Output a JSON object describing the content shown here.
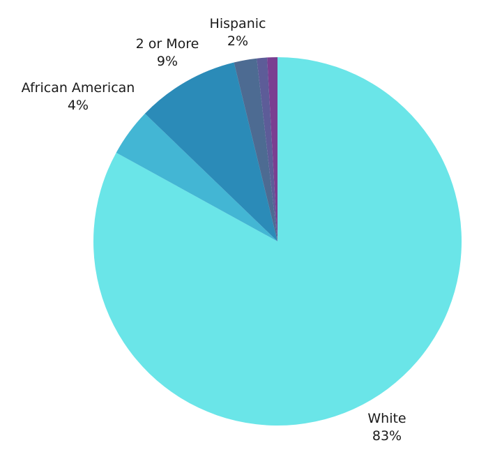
{
  "chart_data": {
    "type": "pie",
    "start_angle_deg": 0,
    "direction": "clockwise",
    "slices": [
      {
        "label": "White",
        "percent_label": "83%",
        "value": 83.0,
        "color": "#6ae5e8",
        "show_label": true
      },
      {
        "label": "African American",
        "percent_label": "4%",
        "value": 4.2,
        "color": "#43b6d4",
        "show_label": true
      },
      {
        "label": "2 or More",
        "percent_label": "9%",
        "value": 9.0,
        "color": "#2b8bb8",
        "show_label": true
      },
      {
        "label": "Hispanic",
        "percent_label": "2%",
        "value": 2.0,
        "color": "#4d6b92",
        "show_label": true
      },
      {
        "label": "",
        "percent_label": "",
        "value": 0.9,
        "color": "#5d5c98",
        "show_label": false
      },
      {
        "label": "",
        "percent_label": "",
        "value": 0.9,
        "color": "#7a3f91",
        "show_label": false
      }
    ]
  }
}
